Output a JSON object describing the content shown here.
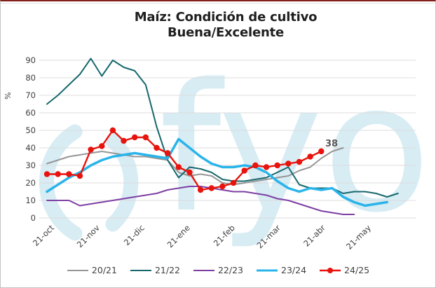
{
  "title": {
    "line1": "Maíz: Condición de cultivo",
    "line2": "Buena/Excelente"
  },
  "watermark": {
    "text": "fyo",
    "color": "#d8ecf4"
  },
  "chart_data": {
    "type": "line",
    "title": "Maíz: Condición de cultivo Buena/Excelente",
    "xlabel": "",
    "ylabel": "%",
    "ylim": [
      0,
      90
    ],
    "y_ticks": [
      0,
      10,
      20,
      30,
      40,
      50,
      60,
      70,
      80,
      90
    ],
    "x_ticks": [
      "21-oct",
      "21-nov",
      "21-dic",
      "21-ene",
      "21-feb",
      "21-mar",
      "21-abr",
      "21-may"
    ],
    "x_note": "weekly observations starting 21-oct",
    "grid": "horizontal",
    "legend_position": "bottom",
    "grid_color": "#dcdcdc",
    "end_label": {
      "series": "24/25",
      "text": "38"
    },
    "series": [
      {
        "name": "20/21",
        "color": "#969696",
        "width": 2,
        "marker": false,
        "values": [
          31,
          33,
          35,
          36,
          37,
          38,
          37,
          36,
          35,
          35,
          34,
          33,
          26,
          24,
          25,
          24,
          20,
          19,
          20,
          21,
          22,
          23,
          24,
          27,
          29,
          34,
          38,
          40
        ]
      },
      {
        "name": "21/22",
        "color": "#17686d",
        "width": 2,
        "marker": false,
        "values": [
          65,
          70,
          76,
          82,
          91,
          81,
          90,
          86,
          84,
          76,
          52,
          33,
          23,
          29,
          28,
          26,
          22,
          21,
          21,
          22,
          23,
          26,
          29,
          19,
          17,
          17,
          17,
          14,
          15,
          15,
          14,
          12,
          14
        ]
      },
      {
        "name": "22/23",
        "color": "#7d3fa3",
        "width": 2,
        "marker": false,
        "values": [
          10,
          10,
          10,
          7,
          8,
          9,
          10,
          11,
          12,
          13,
          14,
          16,
          17,
          18,
          18,
          17,
          16,
          15,
          15,
          14,
          13,
          11,
          10,
          8,
          6,
          4,
          3,
          2,
          2
        ]
      },
      {
        "name": "23/24",
        "color": "#2ab4ea",
        "width": 3.5,
        "marker": false,
        "values": [
          15,
          19,
          23,
          26,
          30,
          33,
          35,
          36,
          37,
          36,
          35,
          34,
          45,
          40,
          35,
          31,
          29,
          29,
          30,
          29,
          26,
          21,
          17,
          15,
          17,
          16,
          17,
          12,
          9,
          7,
          8,
          9
        ]
      },
      {
        "name": "24/25",
        "color": "#e8130c",
        "width": 2.4,
        "marker": true,
        "values": [
          25,
          25,
          25,
          24,
          39,
          41,
          50,
          44,
          46,
          46,
          40,
          37,
          29,
          26,
          16,
          17,
          18,
          20,
          27,
          30,
          29,
          30,
          31,
          32,
          35,
          38
        ]
      }
    ]
  }
}
